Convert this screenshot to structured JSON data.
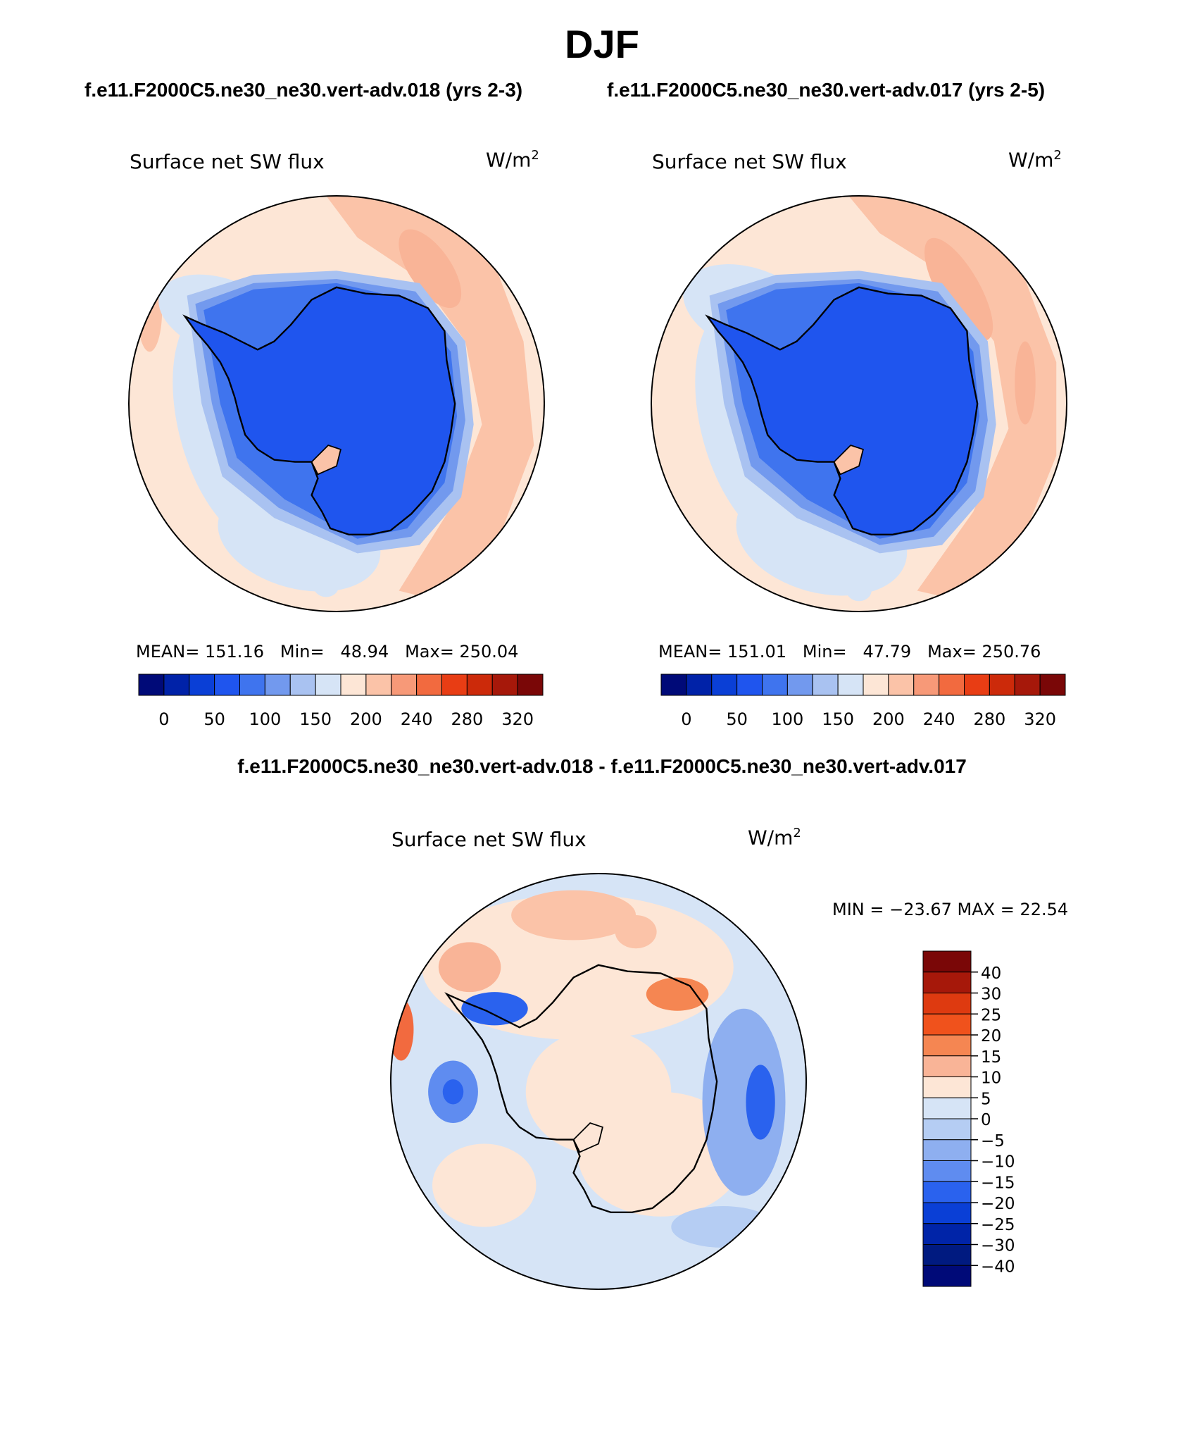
{
  "main_title": "DJF",
  "case1_title": "f.e11.F2000C5.ne30_ne30.vert-adv.018 (yrs 2-3)",
  "case2_title": "f.e11.F2000C5.ne30_ne30.vert-adv.017 (yrs 2-5)",
  "diff_title": "f.e11.F2000C5.ne30_ne30.vert-adv.018 - f.e11.F2000C5.ne30_ne30.vert-adv.017",
  "panels": {
    "p1": {
      "variable": "Surface net SW flux",
      "units": "W/m",
      "units_exp": "2",
      "mean_label": "MEAN=",
      "mean": "151.16",
      "min_label": "Min=",
      "min": "48.94",
      "max_label": "Max=",
      "max": "250.04"
    },
    "p2": {
      "variable": "Surface net SW flux",
      "units": "W/m",
      "units_exp": "2",
      "mean_label": "MEAN=",
      "mean": "151.01",
      "min_label": "Min=",
      "min": "47.79",
      "max_label": "Max=",
      "max": "250.76"
    },
    "p3": {
      "variable": "Surface net SW flux",
      "units": "W/m",
      "units_exp": "2",
      "minmax": "MIN = −23.67  MAX =   22.54"
    }
  },
  "chart_data": [
    {
      "type": "heatmap",
      "title": "Surface net SW flux",
      "subtitle": "f.e11.F2000C5.ne30_ne30.vert-adv.018 (yrs 2-3)",
      "projection": "south polar stereographic",
      "units": "W/m^2",
      "stats": {
        "mean": 151.16,
        "min": 48.94,
        "max": 250.04
      },
      "colorbar": {
        "levels": [
          0,
          50,
          100,
          150,
          200,
          240,
          280,
          320
        ],
        "colors": [
          "#000a78",
          "#0022a8",
          "#0a3fd6",
          "#1f55ee",
          "#3f74ee",
          "#7299ee",
          "#a9c2f1",
          "#d6e4f6",
          "#fde6d6",
          "#fbc3a8",
          "#f79978",
          "#f26a3f",
          "#e83d14",
          "#cc2a0a",
          "#a6180a",
          "#7a0707"
        ]
      }
    },
    {
      "type": "heatmap",
      "title": "Surface net SW flux",
      "subtitle": "f.e11.F2000C5.ne30_ne30.vert-adv.017 (yrs 2-5)",
      "projection": "south polar stereographic",
      "units": "W/m^2",
      "stats": {
        "mean": 151.01,
        "min": 47.79,
        "max": 250.76
      },
      "colorbar": {
        "levels": [
          0,
          50,
          100,
          150,
          200,
          240,
          280,
          320
        ],
        "colors": [
          "#000a78",
          "#0022a8",
          "#0a3fd6",
          "#1f55ee",
          "#3f74ee",
          "#7299ee",
          "#a9c2f1",
          "#d6e4f6",
          "#fde6d6",
          "#fbc3a8",
          "#f79978",
          "#f26a3f",
          "#e83d14",
          "#cc2a0a",
          "#a6180a",
          "#7a0707"
        ]
      }
    },
    {
      "type": "heatmap",
      "title": "Surface net SW flux",
      "subtitle": "f.e11.F2000C5.ne30_ne30.vert-adv.018 - f.e11.F2000C5.ne30_ne30.vert-adv.017",
      "projection": "south polar stereographic",
      "units": "W/m^2",
      "stats": {
        "min": -23.67,
        "max": 22.54
      },
      "colorbar": {
        "levels": [
          "40",
          "30",
          "25",
          "20",
          "15",
          "10",
          "5",
          "0",
          "−5",
          "−10",
          "−15",
          "−20",
          "−25",
          "−30",
          "−40"
        ],
        "colors": [
          "#7a0707",
          "#a6180a",
          "#de3a10",
          "#f0521c",
          "#f58652",
          "#f9b497",
          "#fde6d6",
          "#d6e4f6",
          "#b5cdf3",
          "#8eaff0",
          "#5f8cf0",
          "#2a62ee",
          "#0a3fd6",
          "#0024a8",
          "#001a80",
          "#000a78"
        ]
      }
    }
  ]
}
